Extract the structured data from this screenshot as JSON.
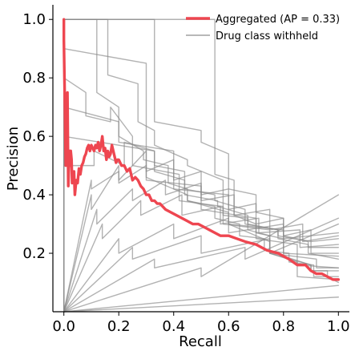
{
  "chart_data": {
    "type": "line",
    "xlabel": "Recall",
    "ylabel": "Precision",
    "xlim": [
      -0.04,
      1.04
    ],
    "ylim": [
      0.0,
      1.05
    ],
    "xticks": [
      0.0,
      0.2,
      0.4,
      0.6,
      0.8,
      1.0
    ],
    "xtick_labels": [
      "0.0",
      "0.2",
      "0.4",
      "0.6",
      "0.8",
      "1.0"
    ],
    "yticks": [
      0.2,
      0.4,
      0.6,
      0.8,
      1.0
    ],
    "ytick_labels": [
      "0.2",
      "0.4",
      "0.6",
      "0.8",
      "1.0"
    ],
    "grid": false,
    "legend_position": "top-right",
    "series": [
      {
        "name": "Aggregated (AP = 0.33)",
        "color": "#ee4650",
        "style": "thick",
        "x": [
          0.0,
          0.0,
          0.005,
          0.007,
          0.01,
          0.013,
          0.016,
          0.02,
          0.022,
          0.025,
          0.028,
          0.03,
          0.034,
          0.037,
          0.04,
          0.045,
          0.05,
          0.055,
          0.06,
          0.065,
          0.07,
          0.075,
          0.08,
          0.085,
          0.09,
          0.095,
          0.1,
          0.105,
          0.11,
          0.115,
          0.12,
          0.125,
          0.13,
          0.135,
          0.14,
          0.145,
          0.15,
          0.155,
          0.16,
          0.165,
          0.17,
          0.175,
          0.18,
          0.185,
          0.19,
          0.195,
          0.2,
          0.21,
          0.22,
          0.23,
          0.24,
          0.25,
          0.26,
          0.27,
          0.28,
          0.29,
          0.3,
          0.31,
          0.32,
          0.33,
          0.34,
          0.35,
          0.37,
          0.39,
          0.41,
          0.43,
          0.45,
          0.47,
          0.49,
          0.51,
          0.53,
          0.55,
          0.57,
          0.6,
          0.63,
          0.66,
          0.7,
          0.74,
          0.78,
          0.82,
          0.85,
          0.88,
          0.9,
          0.92,
          0.94,
          0.96,
          0.98,
          1.0
        ],
        "y": [
          1.0,
          0.93,
          0.62,
          0.5,
          0.73,
          0.75,
          0.43,
          0.55,
          0.5,
          0.55,
          0.52,
          0.44,
          0.45,
          0.48,
          0.4,
          0.45,
          0.44,
          0.49,
          0.47,
          0.5,
          0.51,
          0.53,
          0.54,
          0.56,
          0.57,
          0.55,
          0.57,
          0.56,
          0.55,
          0.57,
          0.56,
          0.58,
          0.55,
          0.57,
          0.6,
          0.55,
          0.56,
          0.52,
          0.55,
          0.53,
          0.54,
          0.57,
          0.55,
          0.53,
          0.51,
          0.52,
          0.52,
          0.5,
          0.5,
          0.48,
          0.49,
          0.45,
          0.46,
          0.45,
          0.43,
          0.42,
          0.4,
          0.4,
          0.38,
          0.38,
          0.37,
          0.37,
          0.35,
          0.34,
          0.33,
          0.32,
          0.31,
          0.3,
          0.3,
          0.29,
          0.28,
          0.27,
          0.26,
          0.26,
          0.25,
          0.24,
          0.23,
          0.21,
          0.2,
          0.18,
          0.16,
          0.16,
          0.14,
          0.13,
          0.13,
          0.12,
          0.11,
          0.11
        ]
      },
      {
        "name": "Drug class withheld",
        "color": "#888888",
        "style": "thin",
        "x": [
          0.0,
          0.0,
          0.55,
          0.55,
          0.62,
          0.62,
          0.7,
          0.7,
          0.8,
          0.8,
          0.9,
          0.9,
          0.96,
          0.96,
          1.0
        ],
        "y": [
          0.0,
          1.0,
          1.0,
          0.47,
          0.45,
          0.33,
          0.3,
          0.27,
          0.25,
          0.19,
          0.16,
          0.14,
          0.14,
          0.12,
          0.1
        ]
      },
      {
        "color": "#888888",
        "style": "thin",
        "x": [
          0.0,
          0.0,
          0.12,
          0.12,
          0.2,
          0.2,
          0.29,
          0.29,
          0.38,
          0.38,
          0.45,
          0.45,
          0.55,
          0.55,
          0.64,
          0.64,
          0.73,
          0.73,
          0.82,
          0.82,
          0.91,
          0.91,
          1.0
        ],
        "y": [
          0.0,
          1.0,
          1.0,
          0.75,
          0.7,
          0.6,
          0.55,
          0.52,
          0.5,
          0.44,
          0.42,
          0.38,
          0.36,
          0.32,
          0.3,
          0.26,
          0.25,
          0.21,
          0.2,
          0.17,
          0.16,
          0.12,
          0.12
        ]
      },
      {
        "color": "#888888",
        "style": "thin",
        "x": [
          0.0,
          0.0,
          0.16,
          0.16,
          0.27,
          0.27,
          0.33,
          0.33,
          0.45,
          0.45,
          0.58,
          0.58,
          0.67,
          0.67,
          0.75,
          0.75,
          0.85,
          0.85,
          1.0
        ],
        "y": [
          0.0,
          1.0,
          1.0,
          0.81,
          0.78,
          0.65,
          0.62,
          0.57,
          0.52,
          0.5,
          0.45,
          0.33,
          0.32,
          0.28,
          0.26,
          0.2,
          0.17,
          0.12,
          0.11
        ]
      },
      {
        "color": "#888888",
        "style": "thin",
        "x": [
          0.0,
          0.0,
          0.33,
          0.33,
          0.5,
          0.5,
          0.6,
          0.6,
          0.7,
          0.7,
          0.8,
          0.8,
          0.9,
          0.9,
          1.0
        ],
        "y": [
          0.0,
          1.0,
          1.0,
          0.65,
          0.62,
          0.58,
          0.54,
          0.42,
          0.4,
          0.34,
          0.32,
          0.26,
          0.24,
          0.2,
          0.2
        ]
      },
      {
        "color": "#888888",
        "style": "thin",
        "x": [
          0.0,
          0.0,
          0.33,
          0.33,
          0.44,
          0.44,
          0.55,
          0.55,
          0.66,
          0.66,
          0.78,
          0.78,
          0.89,
          0.89,
          1.0
        ],
        "y": [
          0.0,
          0.6,
          0.55,
          0.5,
          0.48,
          0.42,
          0.4,
          0.38,
          0.35,
          0.3,
          0.28,
          0.26,
          0.24,
          0.22,
          0.22
        ]
      },
      {
        "color": "#888888",
        "style": "thin",
        "x": [
          0.0,
          0.0,
          0.11,
          0.11,
          0.22,
          0.22,
          0.33,
          0.33,
          0.44,
          0.44,
          0.56,
          0.56,
          0.67,
          0.67,
          0.78,
          0.78,
          0.89,
          0.89,
          1.0
        ],
        "y": [
          0.0,
          0.5,
          0.5,
          0.55,
          0.5,
          0.58,
          0.55,
          0.48,
          0.45,
          0.4,
          0.38,
          0.36,
          0.33,
          0.3,
          0.28,
          0.25,
          0.23,
          0.2,
          0.18
        ]
      },
      {
        "color": "#888888",
        "style": "thin",
        "x": [
          0.0,
          0.1,
          0.1,
          0.2,
          0.2,
          0.3,
          0.3,
          0.4,
          0.4,
          0.5,
          0.5,
          0.6,
          0.6,
          0.7,
          0.7,
          0.8,
          0.8,
          0.9,
          0.9,
          1.0
        ],
        "y": [
          0.0,
          0.4,
          0.35,
          0.5,
          0.45,
          0.55,
          0.48,
          0.52,
          0.45,
          0.48,
          0.4,
          0.42,
          0.35,
          0.37,
          0.3,
          0.32,
          0.26,
          0.28,
          0.24,
          0.25
        ]
      },
      {
        "color": "#888888",
        "style": "thin",
        "x": [
          0.0,
          0.12,
          0.12,
          0.25,
          0.25,
          0.37,
          0.37,
          0.5,
          0.5,
          0.62,
          0.62,
          0.75,
          0.75,
          0.87,
          0.87,
          1.0
        ],
        "y": [
          0.0,
          0.35,
          0.3,
          0.42,
          0.38,
          0.45,
          0.4,
          0.44,
          0.38,
          0.4,
          0.33,
          0.35,
          0.28,
          0.3,
          0.24,
          0.26
        ]
      },
      {
        "color": "#888888",
        "style": "thin",
        "x": [
          0.0,
          0.14,
          0.14,
          0.28,
          0.28,
          0.43,
          0.43,
          0.57,
          0.57,
          0.71,
          0.71,
          0.86,
          0.86,
          1.0
        ],
        "y": [
          0.0,
          0.3,
          0.25,
          0.38,
          0.33,
          0.4,
          0.33,
          0.36,
          0.3,
          0.32,
          0.27,
          0.28,
          0.22,
          0.23
        ]
      },
      {
        "color": "#888888",
        "style": "thin",
        "x": [
          0.0,
          0.2,
          0.2,
          0.4,
          0.4,
          0.6,
          0.6,
          0.8,
          0.8,
          1.0
        ],
        "y": [
          0.0,
          0.25,
          0.2,
          0.3,
          0.25,
          0.32,
          0.27,
          0.3,
          0.25,
          0.27
        ]
      },
      {
        "color": "#888888",
        "style": "thin",
        "x": [
          0.0,
          0.25,
          0.25,
          0.5,
          0.5,
          0.75,
          0.75,
          1.0
        ],
        "y": [
          0.0,
          0.22,
          0.18,
          0.26,
          0.2,
          0.25,
          0.2,
          0.3
        ]
      },
      {
        "color": "#888888",
        "style": "thin",
        "x": [
          0.0,
          0.33,
          0.33,
          0.66,
          0.66,
          1.0
        ],
        "y": [
          0.0,
          0.18,
          0.15,
          0.22,
          0.18,
          0.32
        ]
      },
      {
        "color": "#888888",
        "style": "thin",
        "x": [
          0.0,
          0.5,
          0.5,
          1.0
        ],
        "y": [
          0.0,
          0.15,
          0.12,
          0.4
        ]
      },
      {
        "color": "#888888",
        "style": "thin",
        "x": [
          0.0,
          1.0
        ],
        "y": [
          0.0,
          0.09
        ]
      },
      {
        "color": "#888888",
        "style": "thin",
        "x": [
          0.0,
          1.0
        ],
        "y": [
          0.0,
          0.05
        ]
      },
      {
        "color": "#888888",
        "style": "thin",
        "x": [
          0.0,
          0.1,
          0.1,
          0.2,
          0.2,
          0.3,
          0.3,
          0.45,
          0.45,
          0.6,
          0.6,
          0.75,
          0.75,
          0.9,
          0.9,
          1.0
        ],
        "y": [
          0.0,
          0.45,
          0.42,
          0.48,
          0.44,
          0.5,
          0.46,
          0.4,
          0.38,
          0.34,
          0.3,
          0.24,
          0.2,
          0.16,
          0.14,
          0.14
        ]
      },
      {
        "color": "#888888",
        "style": "thin",
        "x": [
          0.0,
          0.0,
          0.08,
          0.08,
          0.17,
          0.17,
          0.25,
          0.25,
          0.42,
          0.42,
          0.58,
          0.58,
          0.75,
          0.75,
          0.92,
          0.92,
          1.0
        ],
        "y": [
          0.0,
          0.8,
          0.75,
          0.67,
          0.65,
          0.7,
          0.6,
          0.5,
          0.47,
          0.38,
          0.36,
          0.3,
          0.28,
          0.2,
          0.18,
          0.15,
          0.15
        ]
      },
      {
        "color": "#888888",
        "style": "thin",
        "x": [
          0.0,
          0.0,
          0.2,
          0.2,
          0.4,
          0.4,
          0.6,
          0.6,
          0.8,
          0.8,
          1.0
        ],
        "y": [
          0.0,
          0.7,
          0.65,
          0.58,
          0.55,
          0.42,
          0.4,
          0.3,
          0.28,
          0.2,
          0.19
        ]
      },
      {
        "color": "#888888",
        "style": "thin",
        "x": [
          0.0,
          0.0,
          0.3,
          0.3,
          0.5,
          0.5,
          0.7,
          0.7,
          0.85,
          0.85,
          1.0
        ],
        "y": [
          0.0,
          0.9,
          0.85,
          0.45,
          0.43,
          0.35,
          0.32,
          0.25,
          0.23,
          0.16,
          0.15
        ]
      }
    ]
  }
}
